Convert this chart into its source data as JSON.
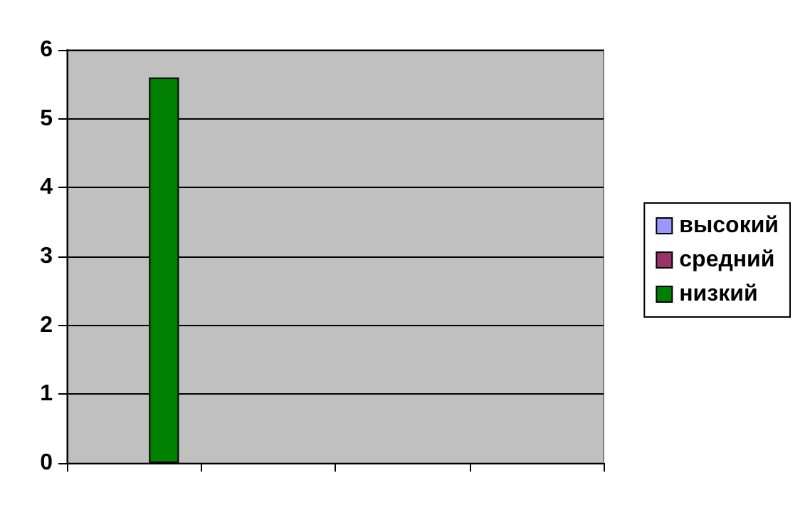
{
  "chart_data": {
    "type": "bar",
    "categories": [
      null,
      null,
      null,
      null
    ],
    "series": [
      {
        "name": "высокий",
        "color": "#9999ff",
        "values": [
          null,
          null,
          null,
          null
        ]
      },
      {
        "name": "средний",
        "color": "#993366",
        "values": [
          null,
          null,
          null,
          null
        ]
      },
      {
        "name": "низкий",
        "color": "#008000",
        "values": [
          5.6,
          null,
          null,
          null
        ]
      }
    ],
    "ylim": [
      0,
      6
    ],
    "yticks": [
      0,
      1,
      2,
      3,
      4,
      5,
      6
    ],
    "grid": "y",
    "legend": "right"
  }
}
